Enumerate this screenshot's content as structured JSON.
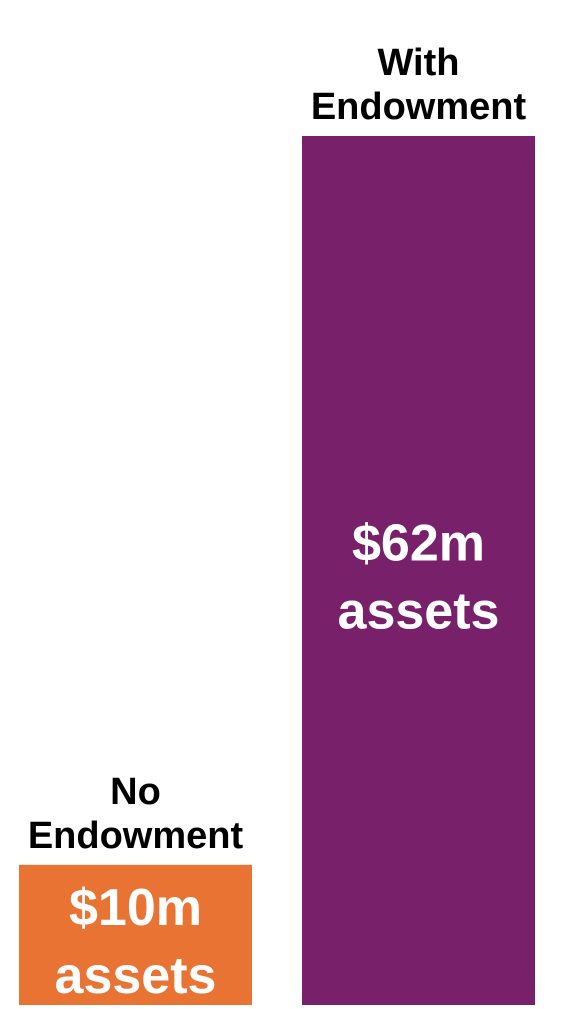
{
  "chart_data": {
    "type": "bar",
    "categories": [
      {
        "line1": "No",
        "line2": "Endowment"
      },
      {
        "line1": "With",
        "line2": "Endowment"
      }
    ],
    "values": [
      10,
      62
    ],
    "data_labels": [
      {
        "line1": "$10m",
        "line2": "assets"
      },
      {
        "line1": "$62m",
        "line2": "assets"
      }
    ],
    "colors": [
      "#E87333",
      "#78206A"
    ],
    "units": "$m assets",
    "ylim": [
      0,
      62
    ],
    "grid": false,
    "legend": "none"
  }
}
